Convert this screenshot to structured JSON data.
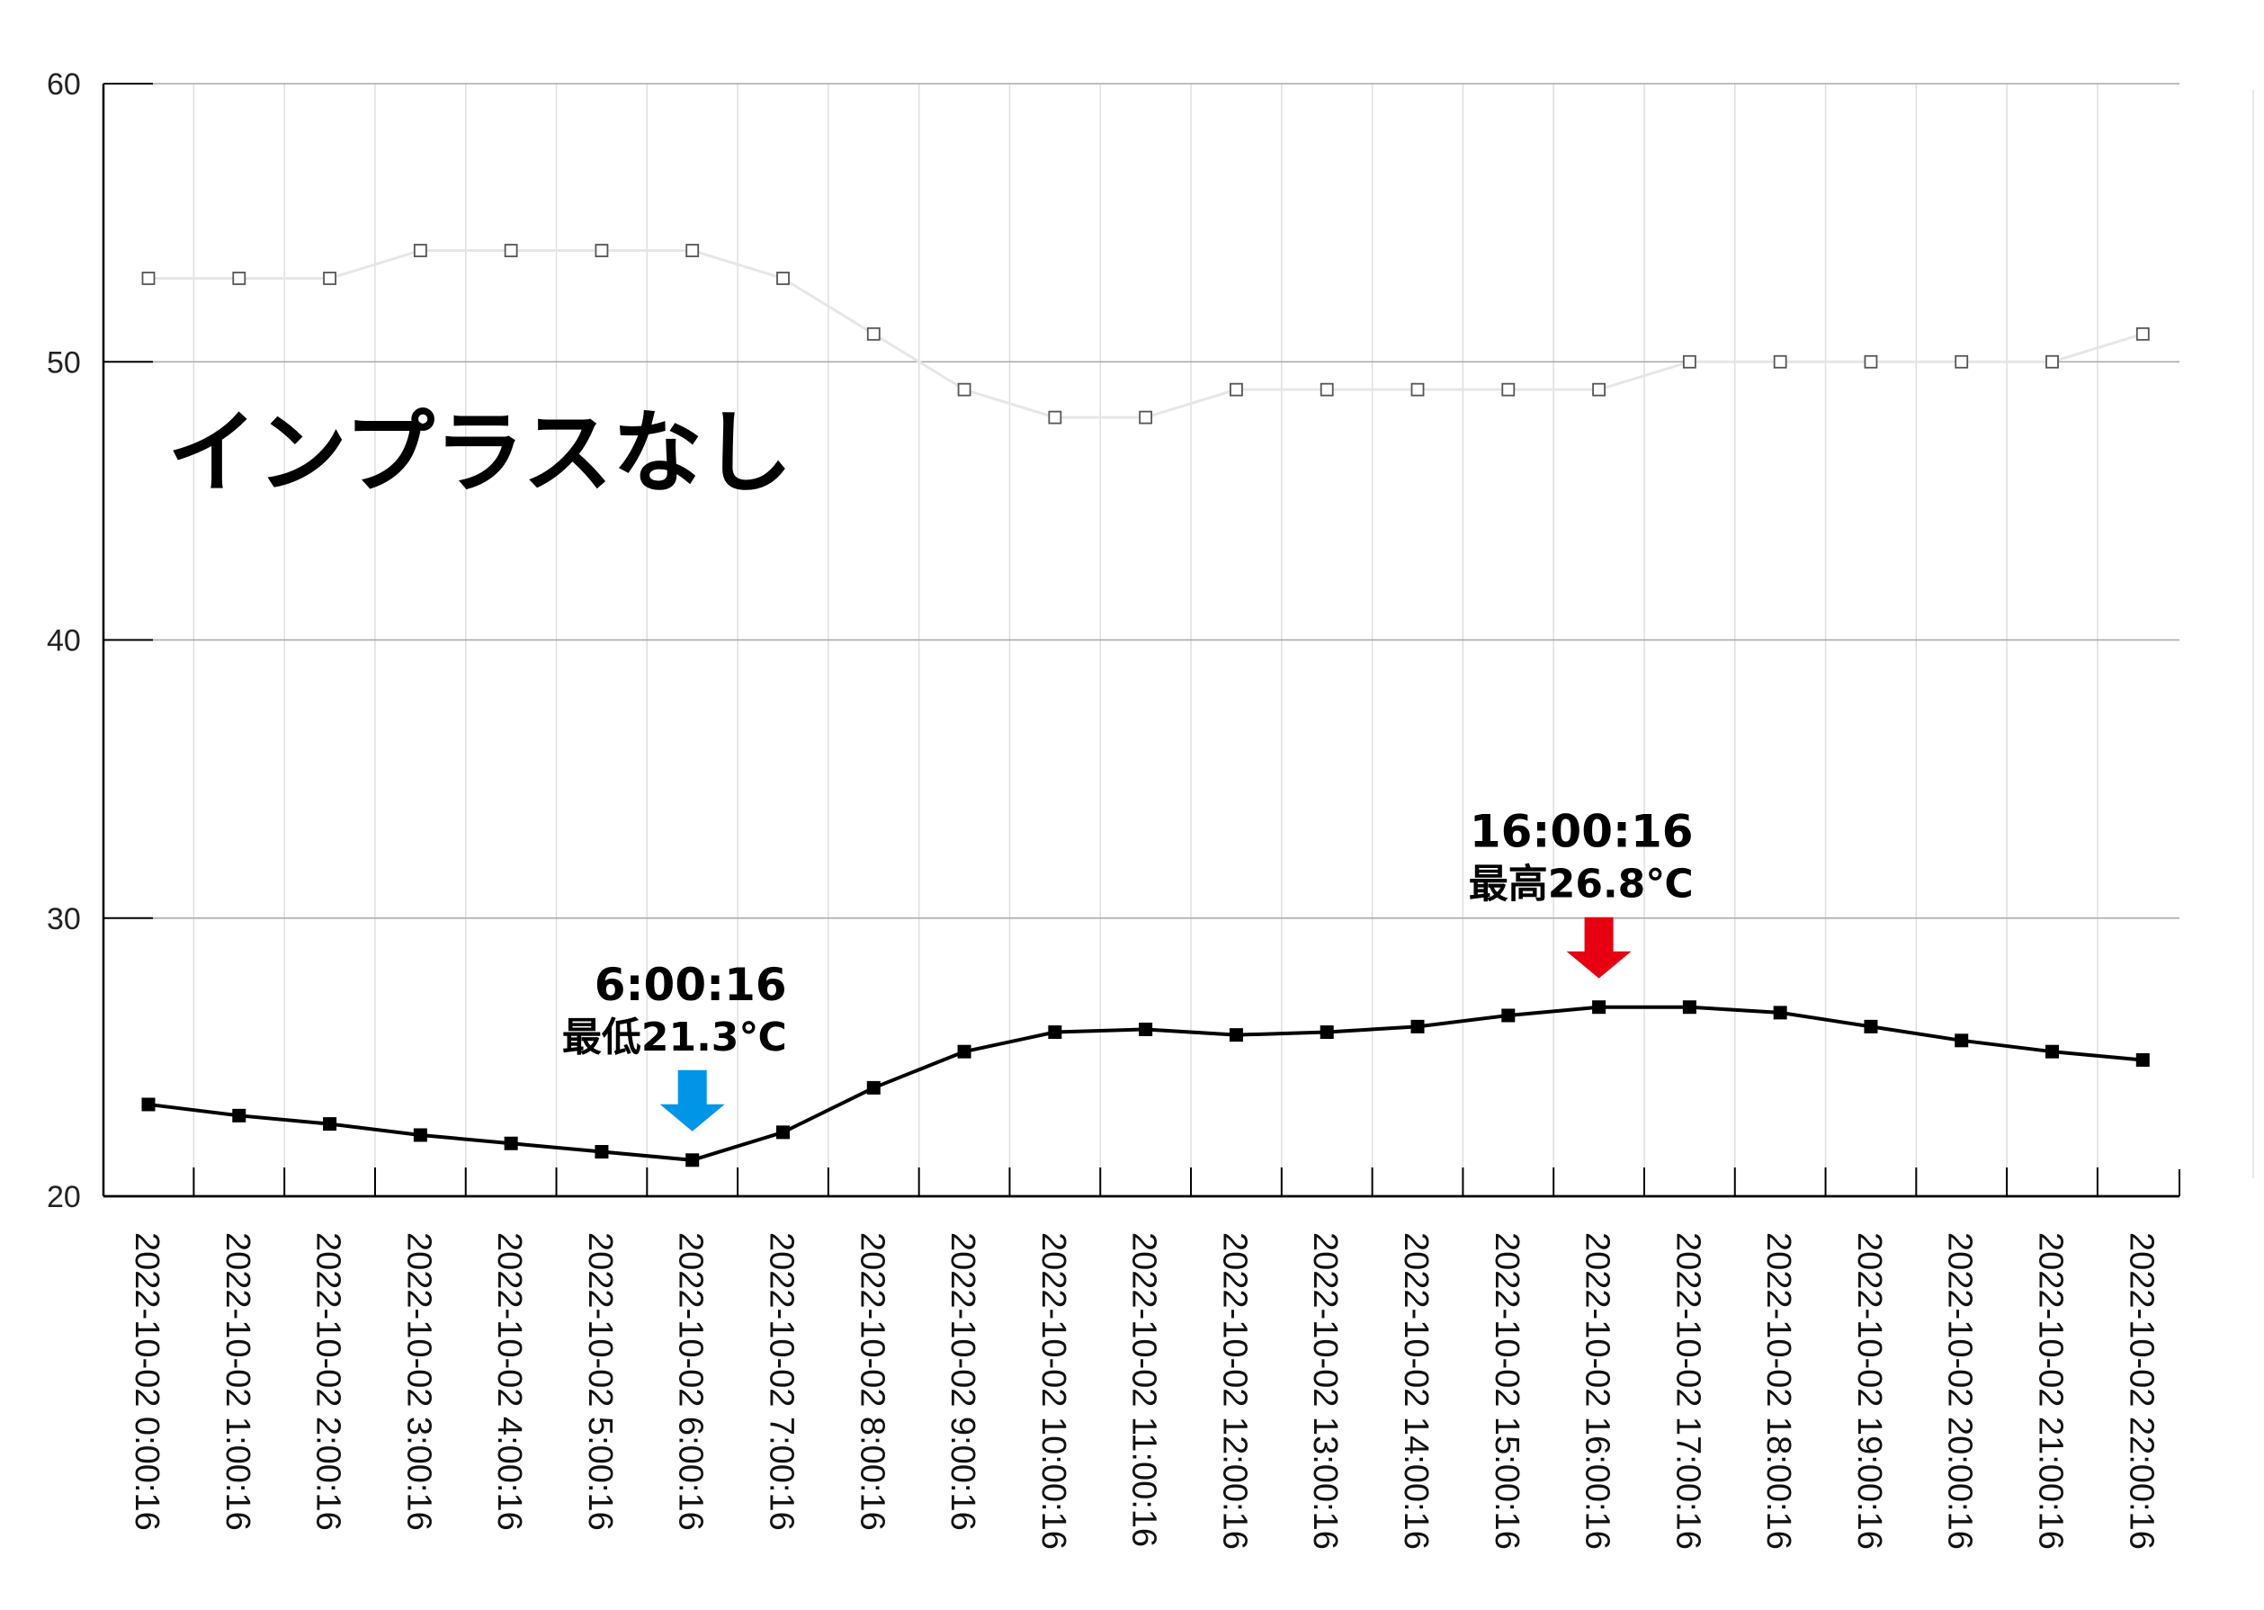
{
  "chart_data": {
    "type": "line",
    "title": "",
    "annotation_title": "インプラスなし",
    "xlabel": "",
    "ylabel": "",
    "ylim": [
      20,
      60
    ],
    "yticks": [
      20,
      30,
      40,
      50,
      60
    ],
    "grid": true,
    "x": [
      "2022-10-02 0:00:16",
      "2022-10-02 1:00:16",
      "2022-10-02 2:00:16",
      "2022-10-02 3:00:16",
      "2022-10-02 4:00:16",
      "2022-10-02 5:00:16",
      "2022-10-02 6:00:16",
      "2022-10-02 7:00:16",
      "2022-10-02 8:00:16",
      "2022-10-02 9:00:16",
      "2022-10-02 10:00:16",
      "2022-10-02 11:00:16",
      "2022-10-02 12:00:16",
      "2022-10-02 13:00:16",
      "2022-10-02 14:00:16",
      "2022-10-02 15:00:16",
      "2022-10-02 16:00:16",
      "2022-10-02 17:00:16",
      "2022-10-02 18:00:16",
      "2022-10-02 19:00:16",
      "2022-10-02 20:00:16",
      "2022-10-02 21:00:16",
      "2022-10-02 22:00:16"
    ],
    "series": [
      {
        "color": "#e6e6e6",
        "marker": "hollow-square",
        "values": [
          53,
          53,
          53,
          54,
          54,
          54,
          54,
          53,
          51,
          49,
          48,
          48,
          49,
          49,
          49,
          49,
          49,
          50,
          50,
          50,
          50,
          50,
          51
        ]
      },
      {
        "color": "#000000",
        "marker": "filled-square",
        "values": [
          23.3,
          22.9,
          22.6,
          22.2,
          21.9,
          21.6,
          21.3,
          22.3,
          23.9,
          25.2,
          25.9,
          26.0,
          25.8,
          25.9,
          26.1,
          26.5,
          26.8,
          26.8,
          26.6,
          26.1,
          25.6,
          25.2,
          24.9
        ]
      }
    ],
    "annotations": [
      {
        "index": 6,
        "time": "6:00:16",
        "value_text": "最低21.3℃",
        "arrow_color": "#0095e6"
      },
      {
        "index": 16,
        "time": "16:00:16",
        "value_text": "最高26.8℃",
        "arrow_color": "#e60012"
      }
    ]
  }
}
